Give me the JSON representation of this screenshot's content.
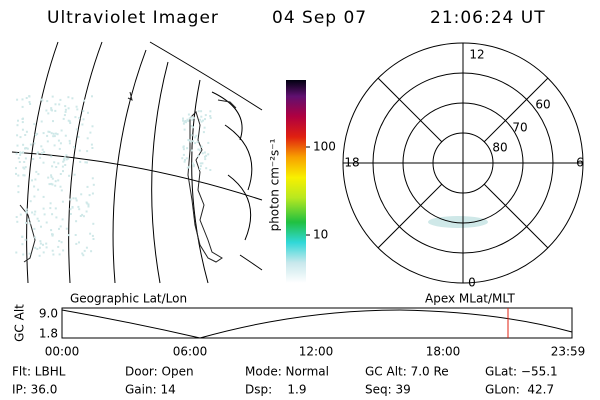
{
  "header": {
    "title": "Ultraviolet Imager",
    "date": "04 Sep 07",
    "time": "21:06:24 UT"
  },
  "colorbar": {
    "label": "photon cm⁻²s⁻¹",
    "ticks": [
      "100",
      "10"
    ]
  },
  "polar_plot": {
    "hour_labels": [
      "12",
      "18",
      "6",
      "0"
    ],
    "latitude_labels": [
      "60",
      "70",
      "80"
    ]
  },
  "altitude_plot": {
    "left_label": "Geographic Lat/Lon",
    "right_label": "Apex MLat/MLT",
    "y_label": "GC Alt",
    "y_ticks": [
      "9.0",
      "1.8"
    ],
    "x_ticks": [
      "00:00",
      "06:00",
      "12:00",
      "18:00",
      "23:59"
    ]
  },
  "info": {
    "rows": [
      [
        "Flt: LBHL",
        "Door: Open",
        "Mode: Normal",
        "GC Alt: 7.0 Re",
        "GLat: −55.1"
      ],
      [
        "IP: 36.0",
        "Gain: 14",
        "Dsp:    1.9",
        "Seq: 39",
        "GLon:  42.7"
      ]
    ]
  }
}
